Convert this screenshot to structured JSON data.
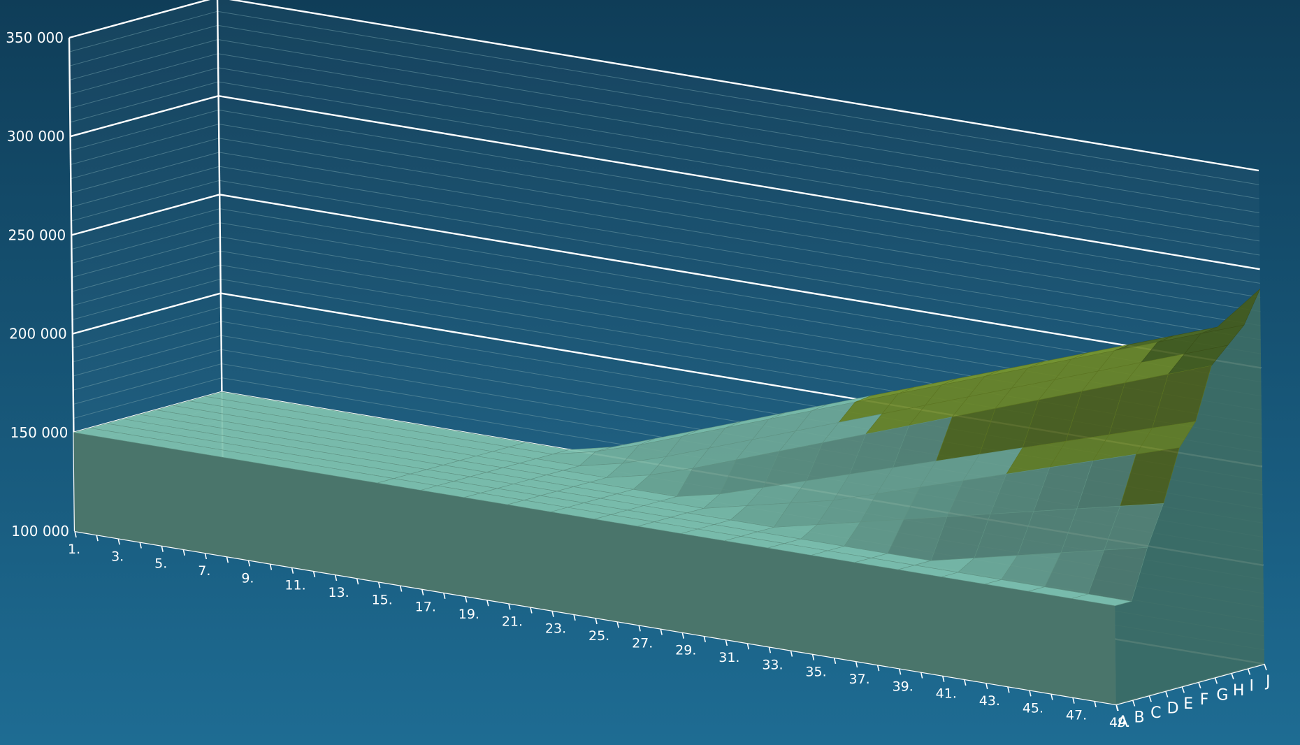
{
  "chart_data": {
    "type": "surface3d",
    "title": "",
    "xlabel": "",
    "ylabel": "",
    "zlabel": "",
    "y_ticks": [
      "100 000",
      "150 000",
      "200 000",
      "250 000",
      "300 000",
      "350 000"
    ],
    "ylim": [
      100000,
      350000
    ],
    "x_tick_labels": [
      "1.",
      "3.",
      "5.",
      "7.",
      "9.",
      "11.",
      "13.",
      "15.",
      "17.",
      "19.",
      "21.",
      "23.",
      "25.",
      "27.",
      "29.",
      "31.",
      "33.",
      "35.",
      "37.",
      "39.",
      "41.",
      "43.",
      "45.",
      "47.",
      "49."
    ],
    "x_count": 49,
    "series_labels": [
      "A",
      "B",
      "C",
      "D",
      "E",
      "F",
      "G",
      "H",
      "I",
      "J"
    ],
    "step_x": [
      1,
      15,
      17,
      19,
      21,
      23,
      25,
      27,
      29,
      31,
      33,
      35,
      37,
      39,
      41,
      43,
      45,
      47,
      49
    ],
    "series": [
      {
        "name": "A",
        "values": [
          150000,
          150000,
          150000,
          150000,
          150000,
          150000,
          150000,
          150000,
          150000,
          150000,
          150000,
          150000,
          150000,
          150000,
          150000,
          150000,
          150000,
          150000,
          150000
        ]
      },
      {
        "name": "B",
        "values": [
          150000,
          150000,
          150000,
          150000,
          150000,
          150000,
          150000,
          150000,
          150000,
          150000,
          150000,
          150000,
          150000,
          150000,
          150000,
          150000,
          150000,
          150000,
          150000
        ]
      },
      {
        "name": "C",
        "values": [
          150000,
          150000,
          150000,
          150000,
          150000,
          150000,
          150000,
          150000,
          150000,
          150000,
          150000,
          150000,
          150000,
          150000,
          155000,
          160000,
          165000,
          170000,
          175000
        ]
      },
      {
        "name": "D",
        "values": [
          150000,
          150000,
          150000,
          150000,
          150000,
          150000,
          150000,
          150000,
          150000,
          150000,
          155000,
          160000,
          165000,
          170000,
          175000,
          180000,
          185000,
          190000,
          195000
        ]
      },
      {
        "name": "E",
        "values": [
          150000,
          150000,
          150000,
          150000,
          150000,
          150000,
          150000,
          150000,
          155000,
          160000,
          165000,
          172000,
          179000,
          186000,
          193000,
          200000,
          207000,
          214000,
          221000
        ]
      },
      {
        "name": "F",
        "values": [
          150000,
          150000,
          150000,
          150000,
          150000,
          150000,
          150000,
          155000,
          162000,
          169000,
          176000,
          183000,
          190000,
          197000,
          204000,
          211000,
          218000,
          225000,
          232000
        ]
      },
      {
        "name": "G",
        "values": [
          150000,
          150000,
          150000,
          150000,
          150000,
          155000,
          162000,
          170000,
          178000,
          186000,
          194000,
          202000,
          210000,
          218000,
          226000,
          234000,
          242000,
          250000,
          258000
        ]
      },
      {
        "name": "H",
        "values": [
          150000,
          150000,
          150000,
          150000,
          155000,
          162000,
          170000,
          178000,
          186000,
          194000,
          202000,
          210000,
          218000,
          226000,
          234000,
          242000,
          250000,
          258000,
          266000
        ]
      },
      {
        "name": "I",
        "values": [
          150000,
          150000,
          150000,
          155000,
          162000,
          170000,
          178000,
          186000,
          194000,
          202000,
          210000,
          218000,
          226000,
          234000,
          242000,
          250000,
          258000,
          266000,
          274000
        ]
      },
      {
        "name": "J",
        "values": [
          150000,
          150000,
          150000,
          155000,
          163000,
          171000,
          179000,
          187000,
          195000,
          203000,
          211000,
          219000,
          227000,
          235000,
          243000,
          251000,
          259000,
          267000,
          290000
        ]
      }
    ],
    "band_colors": [
      {
        "limit": 200000,
        "color": "#7fc2ae"
      },
      {
        "limit": 250000,
        "color": "#7a9a2e"
      },
      {
        "limit": 300000,
        "color": "#4f6a22"
      },
      {
        "limit": 350000,
        "color": "#c9a520"
      }
    ],
    "grid": true,
    "legend": "none",
    "colors": {
      "background_top": "#0f3d58",
      "background_bottom": "#1e6c93",
      "axis": "#ffffff",
      "gridline": "#ffffff",
      "minor_gridline": "#6e9aa5"
    }
  }
}
